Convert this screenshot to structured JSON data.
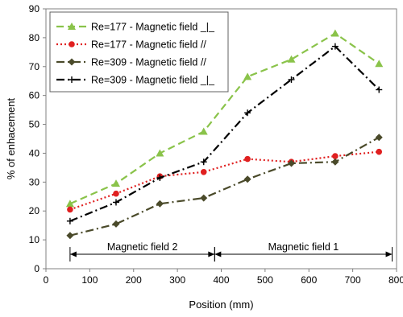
{
  "chart_data": {
    "type": "line",
    "xlabel": "Position (mm)",
    "ylabel": "% of enhacement",
    "xlim": [
      0,
      800
    ],
    "ylim": [
      0,
      90
    ],
    "x_ticks": [
      0,
      100,
      200,
      300,
      400,
      500,
      600,
      700,
      800
    ],
    "y_ticks": [
      0,
      10,
      20,
      30,
      40,
      50,
      60,
      70,
      80,
      90
    ],
    "grid": false,
    "legend_position": "top-left",
    "x": [
      55,
      160,
      260,
      360,
      460,
      560,
      660,
      760
    ],
    "series": [
      {
        "name": "Re=177 - Magnetic field _|_",
        "values": [
          22.5,
          29.5,
          40.0,
          47.5,
          66.5,
          72.5,
          81.5,
          71.0
        ],
        "color": "#8ac34a",
        "line_style": "dash",
        "marker": "triangle"
      },
      {
        "name": "Re=177 - Magnetic field //",
        "values": [
          20.5,
          26.0,
          32.0,
          33.5,
          38.0,
          37.0,
          39.0,
          40.5
        ],
        "color": "#e02020",
        "line_style": "dot",
        "marker": "circle"
      },
      {
        "name": "Re=309 - Magnetic field //",
        "values": [
          11.5,
          15.5,
          22.5,
          24.5,
          31.0,
          36.5,
          37.0,
          45.5
        ],
        "color": "#4a4a2a",
        "line_style": "dashdot",
        "marker": "diamond"
      },
      {
        "name": "Re=309 - Magnetic field _|_",
        "values": [
          16.5,
          23.0,
          31.5,
          37.0,
          54.0,
          65.5,
          77.0,
          62.0
        ],
        "color": "#000000",
        "line_style": "dashdot",
        "marker": "plus"
      }
    ],
    "annotations": [
      {
        "text": "Magnetic field 2",
        "x_start": 55,
        "x_end": 385,
        "y": 5
      },
      {
        "text": "Magnetic field 1",
        "x_start": 385,
        "x_end": 790,
        "y": 5
      }
    ]
  }
}
